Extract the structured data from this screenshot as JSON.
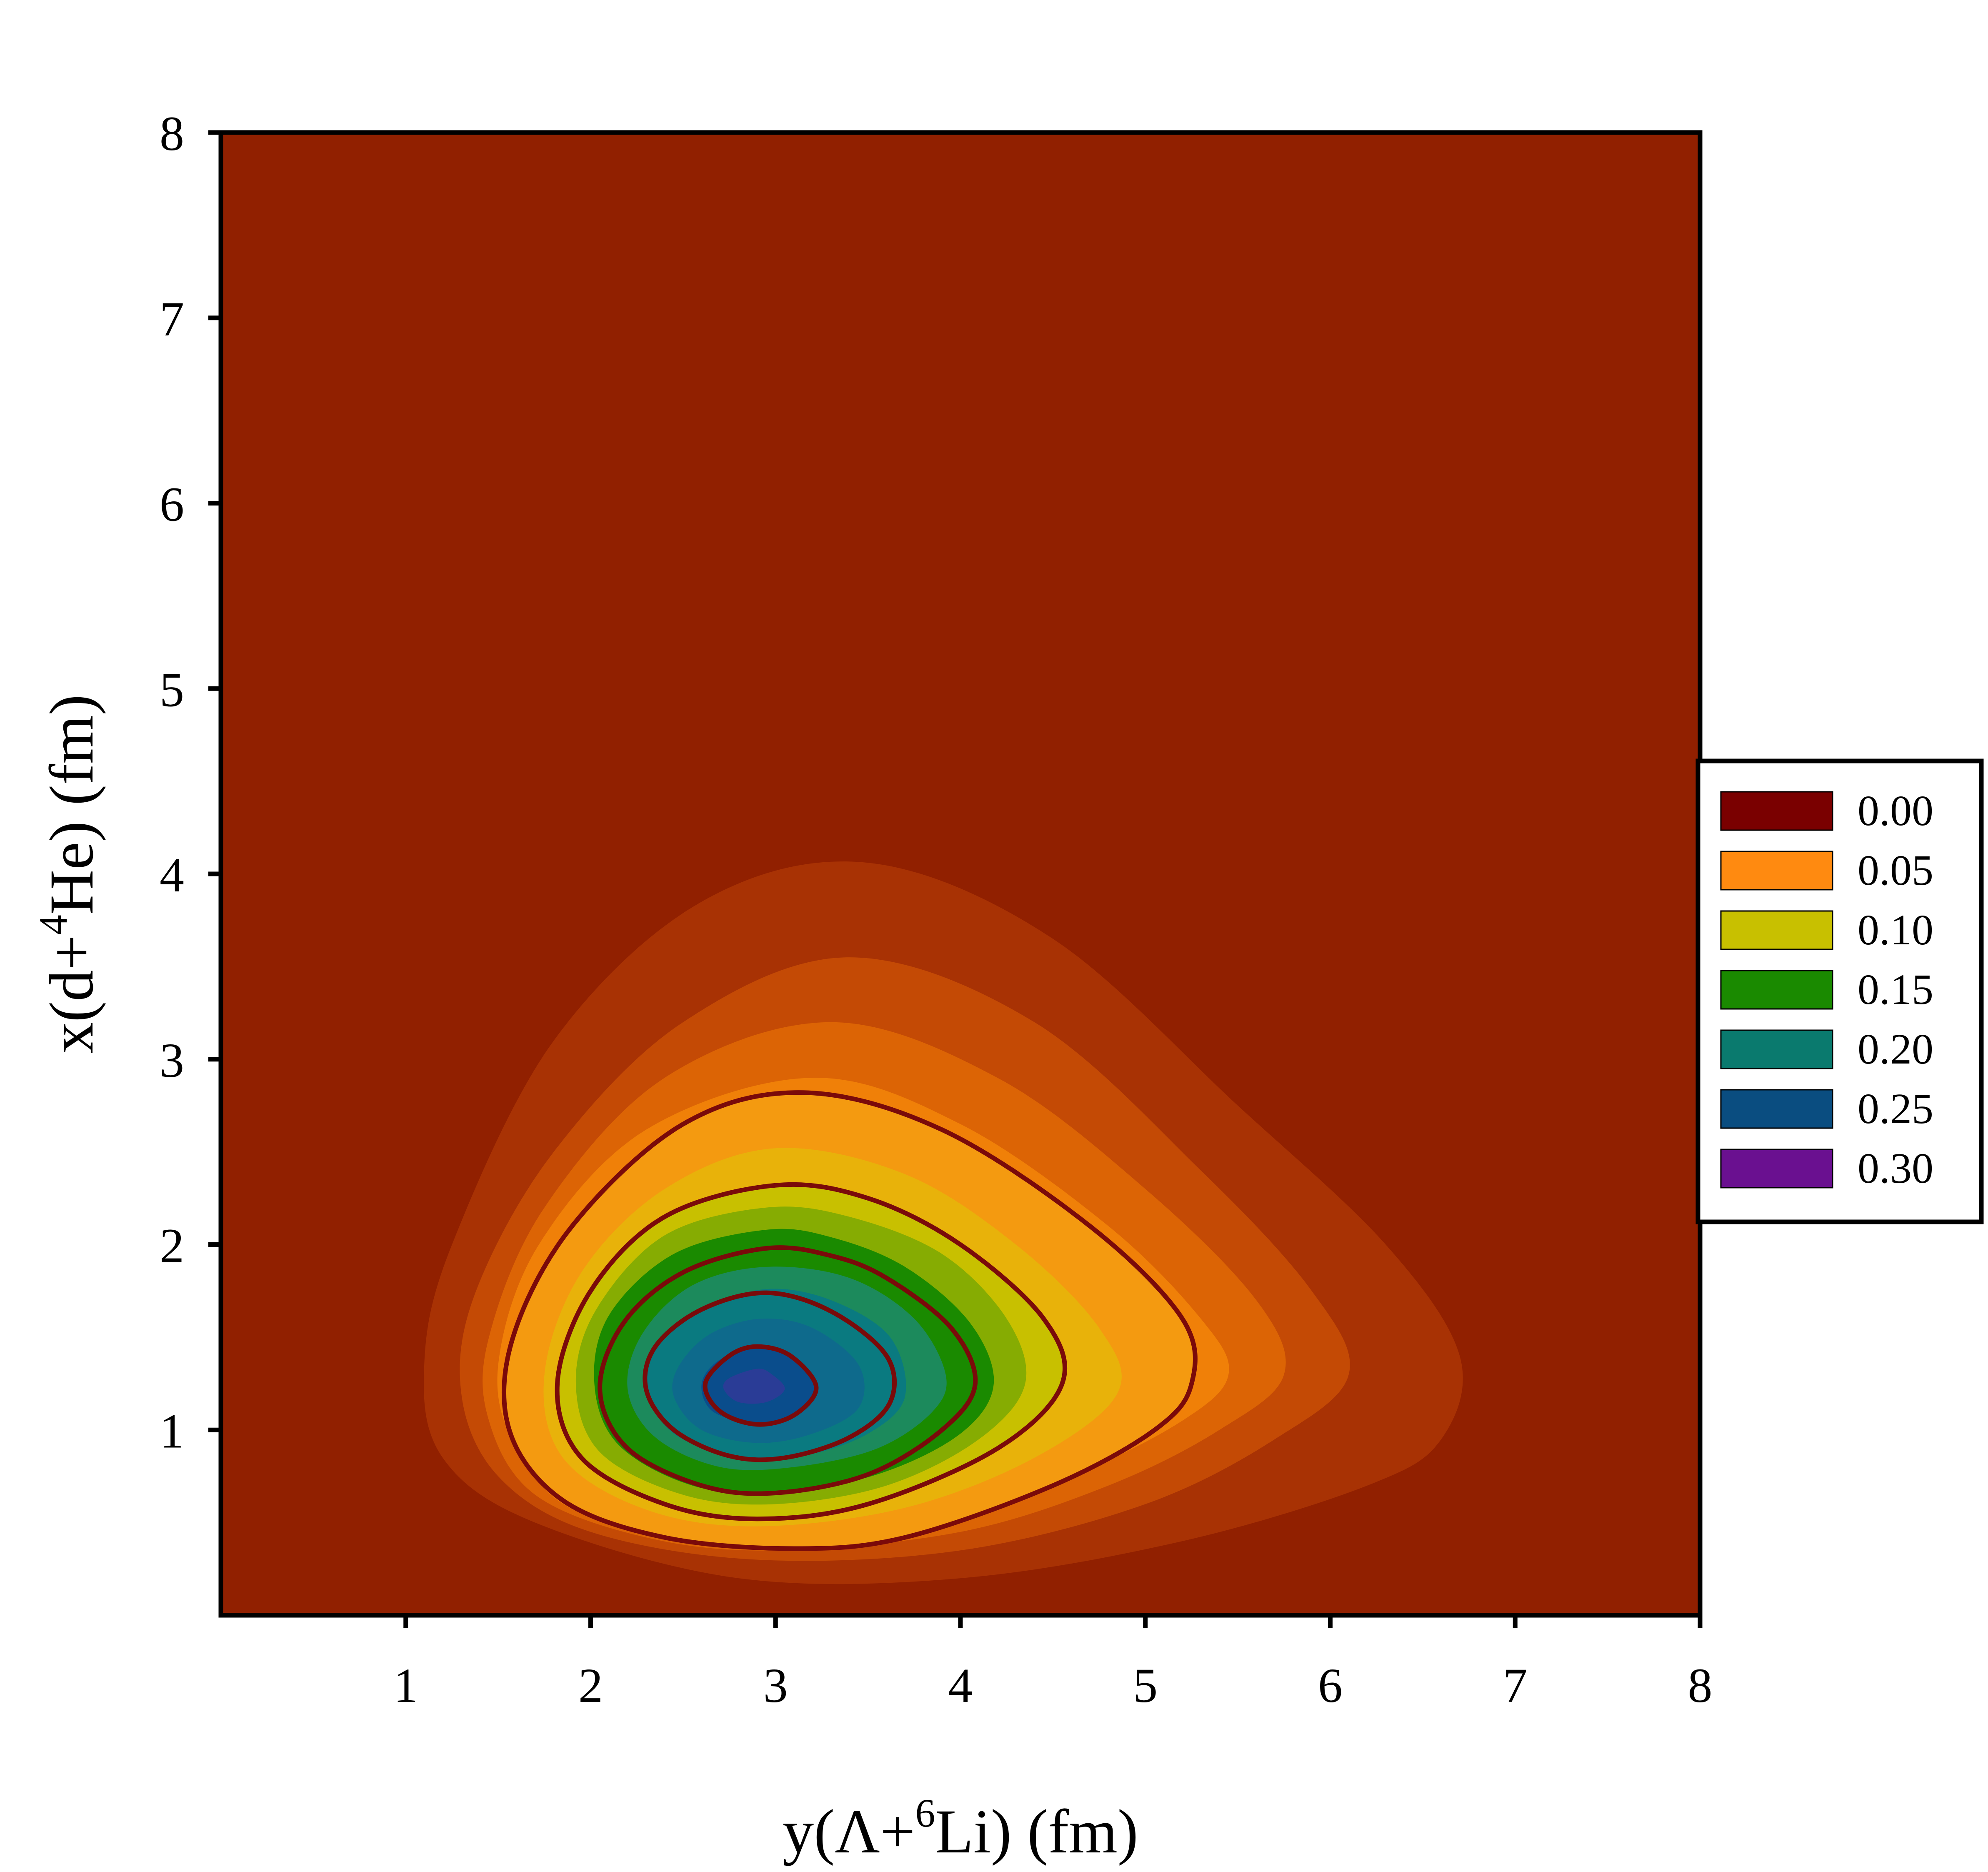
{
  "chart_data": {
    "type": "contour",
    "xlabel": {
      "prefix": "y(Λ+",
      "sup": "6",
      "suffix": "Li) (fm)"
    },
    "ylabel": {
      "prefix": "x(d+",
      "sup": "4",
      "suffix": "He) (fm)"
    },
    "xlim": [
      0,
      8
    ],
    "ylim": [
      0,
      8
    ],
    "x_ticks": [
      "1",
      "2",
      "3",
      "4",
      "5",
      "6",
      "7",
      "8"
    ],
    "y_ticks": [
      "1",
      "2",
      "3",
      "4",
      "5",
      "6",
      "7",
      "8"
    ],
    "grid": false,
    "legend_position": "right",
    "peak": {
      "x": 2.9,
      "y": 1.23
    },
    "filled_levels": [
      {
        "color": "#912000",
        "points": []
      },
      {
        "color": "#A83204",
        "points": [
          [
            3.5,
            4.06
          ],
          [
            2.6,
            3.85
          ],
          [
            1.8,
            3.1
          ],
          [
            1.25,
            2.0
          ],
          [
            1.1,
            1.35
          ],
          [
            1.2,
            0.85
          ],
          [
            1.7,
            0.5
          ],
          [
            2.8,
            0.2
          ],
          [
            4.0,
            0.2
          ],
          [
            5.2,
            0.4
          ],
          [
            6.2,
            0.7
          ],
          [
            6.6,
            0.95
          ],
          [
            6.7,
            1.4
          ],
          [
            6.3,
            2.0
          ],
          [
            5.5,
            2.75
          ],
          [
            4.5,
            3.65
          ]
        ]
      },
      {
        "color": "#C44A05",
        "points": [
          [
            3.4,
            3.55
          ],
          [
            2.5,
            3.2
          ],
          [
            1.8,
            2.5
          ],
          [
            1.38,
            1.75
          ],
          [
            1.3,
            1.2
          ],
          [
            1.5,
            0.75
          ],
          [
            2.0,
            0.45
          ],
          [
            2.9,
            0.3
          ],
          [
            4.0,
            0.35
          ],
          [
            5.0,
            0.6
          ],
          [
            5.7,
            0.95
          ],
          [
            6.1,
            1.3
          ],
          [
            5.9,
            1.75
          ],
          [
            5.3,
            2.4
          ],
          [
            4.4,
            3.2
          ]
        ]
      },
      {
        "color": "#DC6405",
        "points": [
          [
            3.3,
            3.2
          ],
          [
            2.4,
            2.9
          ],
          [
            1.75,
            2.2
          ],
          [
            1.45,
            1.5
          ],
          [
            1.45,
            1.05
          ],
          [
            1.7,
            0.65
          ],
          [
            2.3,
            0.42
          ],
          [
            3.0,
            0.35
          ],
          [
            4.0,
            0.45
          ],
          [
            4.8,
            0.7
          ],
          [
            5.4,
            1.0
          ],
          [
            5.75,
            1.3
          ],
          [
            5.6,
            1.7
          ],
          [
            5.0,
            2.3
          ],
          [
            4.2,
            2.9
          ]
        ]
      },
      {
        "color": "#F08008",
        "points": [
          [
            3.2,
            2.9
          ],
          [
            2.3,
            2.62
          ],
          [
            1.72,
            2.0
          ],
          [
            1.5,
            1.35
          ],
          [
            1.6,
            0.9
          ],
          [
            1.95,
            0.55
          ],
          [
            2.8,
            0.4
          ],
          [
            3.8,
            0.48
          ],
          [
            4.6,
            0.75
          ],
          [
            5.2,
            1.05
          ],
          [
            5.45,
            1.3
          ],
          [
            5.3,
            1.6
          ],
          [
            4.8,
            2.1
          ],
          [
            4.0,
            2.65
          ]
        ]
      },
      {
        "color": "#F49A10",
        "points": [
          [
            3.15,
            2.82
          ],
          [
            2.5,
            2.65
          ],
          [
            1.9,
            2.1
          ],
          [
            1.58,
            1.5
          ],
          [
            1.56,
            1.0
          ],
          [
            1.85,
            0.62
          ],
          [
            2.4,
            0.42
          ],
          [
            3.1,
            0.36
          ],
          [
            3.7,
            0.42
          ],
          [
            4.5,
            0.7
          ],
          [
            5.05,
            1.0
          ],
          [
            5.25,
            1.25
          ],
          [
            5.2,
            1.6
          ],
          [
            4.7,
            2.1
          ],
          [
            3.9,
            2.62
          ]
        ]
      },
      {
        "color": "#E8B20A",
        "points": [
          [
            3.0,
            2.52
          ],
          [
            2.4,
            2.3
          ],
          [
            1.95,
            1.85
          ],
          [
            1.75,
            1.3
          ],
          [
            1.85,
            0.85
          ],
          [
            2.3,
            0.57
          ],
          [
            2.9,
            0.48
          ],
          [
            3.7,
            0.58
          ],
          [
            4.4,
            0.85
          ],
          [
            4.85,
            1.2
          ],
          [
            4.75,
            1.55
          ],
          [
            4.3,
            2.0
          ],
          [
            3.7,
            2.38
          ]
        ]
      },
      {
        "color": "#C8C000",
        "points": [
          [
            3.0,
            2.32
          ],
          [
            2.4,
            2.15
          ],
          [
            2.0,
            1.75
          ],
          [
            1.82,
            1.25
          ],
          [
            1.95,
            0.85
          ],
          [
            2.4,
            0.6
          ],
          [
            2.9,
            0.52
          ],
          [
            3.5,
            0.6
          ],
          [
            4.2,
            0.9
          ],
          [
            4.55,
            1.25
          ],
          [
            4.45,
            1.6
          ],
          [
            4.0,
            2.0
          ],
          [
            3.5,
            2.25
          ]
        ]
      },
      {
        "color": "#86AC02",
        "points": [
          [
            2.95,
            2.2
          ],
          [
            2.4,
            2.05
          ],
          [
            2.03,
            1.65
          ],
          [
            1.92,
            1.25
          ],
          [
            2.05,
            0.88
          ],
          [
            2.5,
            0.65
          ],
          [
            3.0,
            0.6
          ],
          [
            3.6,
            0.7
          ],
          [
            4.1,
            0.95
          ],
          [
            4.35,
            1.25
          ],
          [
            4.25,
            1.6
          ],
          [
            3.9,
            1.95
          ],
          [
            3.4,
            2.15
          ]
        ]
      },
      {
        "color": "#1A8A00",
        "points": [
          [
            2.95,
            2.08
          ],
          [
            2.45,
            1.95
          ],
          [
            2.1,
            1.62
          ],
          [
            2.02,
            1.25
          ],
          [
            2.15,
            0.92
          ],
          [
            2.55,
            0.7
          ],
          [
            3.0,
            0.66
          ],
          [
            3.55,
            0.76
          ],
          [
            4.0,
            0.98
          ],
          [
            4.18,
            1.25
          ],
          [
            4.05,
            1.58
          ],
          [
            3.7,
            1.88
          ],
          [
            3.3,
            2.04
          ]
        ]
      },
      {
        "color": "#1C8A5C",
        "points": [
          [
            2.95,
            1.88
          ],
          [
            2.55,
            1.78
          ],
          [
            2.28,
            1.52
          ],
          [
            2.2,
            1.22
          ],
          [
            2.35,
            0.96
          ],
          [
            2.7,
            0.8
          ],
          [
            3.1,
            0.8
          ],
          [
            3.55,
            0.9
          ],
          [
            3.85,
            1.1
          ],
          [
            3.92,
            1.3
          ],
          [
            3.75,
            1.6
          ],
          [
            3.4,
            1.82
          ]
        ]
      },
      {
        "color": "#0A7A80",
        "points": [
          [
            2.95,
            1.76
          ],
          [
            2.6,
            1.65
          ],
          [
            2.35,
            1.45
          ],
          [
            2.3,
            1.22
          ],
          [
            2.45,
            0.98
          ],
          [
            2.8,
            0.85
          ],
          [
            3.15,
            0.86
          ],
          [
            3.5,
            0.98
          ],
          [
            3.7,
            1.18
          ],
          [
            3.62,
            1.5
          ],
          [
            3.3,
            1.7
          ]
        ]
      },
      {
        "color": "#0E6A8C",
        "points": [
          [
            2.92,
            1.6
          ],
          [
            2.65,
            1.52
          ],
          [
            2.48,
            1.35
          ],
          [
            2.45,
            1.18
          ],
          [
            2.6,
            1.0
          ],
          [
            2.9,
            0.93
          ],
          [
            3.2,
            0.98
          ],
          [
            3.45,
            1.12
          ],
          [
            3.45,
            1.35
          ],
          [
            3.2,
            1.55
          ]
        ]
      },
      {
        "color": "#0A4D8C",
        "points": [
          [
            2.9,
            1.44
          ],
          [
            2.7,
            1.38
          ],
          [
            2.6,
            1.25
          ],
          [
            2.66,
            1.1
          ],
          [
            2.88,
            1.04
          ],
          [
            3.1,
            1.08
          ],
          [
            3.22,
            1.22
          ],
          [
            3.12,
            1.38
          ]
        ]
      },
      {
        "color": "#2A3C96",
        "points": [
          [
            2.9,
            1.33
          ],
          [
            2.75,
            1.28
          ],
          [
            2.72,
            1.22
          ],
          [
            2.8,
            1.15
          ],
          [
            2.95,
            1.15
          ],
          [
            3.05,
            1.22
          ],
          [
            2.98,
            1.3
          ]
        ]
      }
    ],
    "contour_lines": [
      {
        "level": 0.05,
        "points": [
          [
            3.15,
            2.82
          ],
          [
            2.5,
            2.65
          ],
          [
            1.9,
            2.1
          ],
          [
            1.58,
            1.5
          ],
          [
            1.56,
            1.0
          ],
          [
            1.85,
            0.62
          ],
          [
            2.4,
            0.42
          ],
          [
            3.1,
            0.36
          ],
          [
            3.7,
            0.42
          ],
          [
            4.5,
            0.7
          ],
          [
            5.05,
            1.0
          ],
          [
            5.25,
            1.25
          ],
          [
            5.2,
            1.6
          ],
          [
            4.7,
            2.1
          ],
          [
            3.9,
            2.62
          ]
        ]
      },
      {
        "level": 0.1,
        "points": [
          [
            3.0,
            2.32
          ],
          [
            2.4,
            2.15
          ],
          [
            2.0,
            1.75
          ],
          [
            1.82,
            1.25
          ],
          [
            1.95,
            0.85
          ],
          [
            2.4,
            0.6
          ],
          [
            2.9,
            0.52
          ],
          [
            3.5,
            0.6
          ],
          [
            4.2,
            0.9
          ],
          [
            4.55,
            1.25
          ],
          [
            4.45,
            1.6
          ],
          [
            4.0,
            2.0
          ],
          [
            3.5,
            2.25
          ]
        ]
      },
      {
        "level": 0.15,
        "points": [
          [
            2.95,
            1.98
          ],
          [
            2.5,
            1.85
          ],
          [
            2.18,
            1.58
          ],
          [
            2.05,
            1.22
          ],
          [
            2.2,
            0.9
          ],
          [
            2.6,
            0.7
          ],
          [
            3.0,
            0.66
          ],
          [
            3.5,
            0.76
          ],
          [
            3.9,
            1.0
          ],
          [
            4.08,
            1.25
          ],
          [
            3.95,
            1.55
          ],
          [
            3.6,
            1.82
          ],
          [
            3.3,
            1.94
          ]
        ]
      },
      {
        "level": 0.2,
        "points": [
          [
            2.95,
            1.74
          ],
          [
            2.6,
            1.65
          ],
          [
            2.35,
            1.45
          ],
          [
            2.3,
            1.22
          ],
          [
            2.45,
            1.0
          ],
          [
            2.75,
            0.86
          ],
          [
            3.05,
            0.85
          ],
          [
            3.4,
            0.96
          ],
          [
            3.62,
            1.15
          ],
          [
            3.6,
            1.4
          ],
          [
            3.3,
            1.64
          ]
        ]
      },
      {
        "level": 0.25,
        "points": [
          [
            2.9,
            1.45
          ],
          [
            2.75,
            1.4
          ],
          [
            2.62,
            1.25
          ],
          [
            2.7,
            1.1
          ],
          [
            2.9,
            1.03
          ],
          [
            3.1,
            1.08
          ],
          [
            3.22,
            1.23
          ],
          [
            3.08,
            1.4
          ]
        ]
      }
    ],
    "line_color": "#7A0A0A",
    "legend": [
      {
        "label": "0.00",
        "color": "#7A0000"
      },
      {
        "label": "0.05",
        "color": "#FF8A10"
      },
      {
        "label": "0.10",
        "color": "#C8C000"
      },
      {
        "label": "0.15",
        "color": "#1A8A00"
      },
      {
        "label": "0.20",
        "color": "#0A7A6E"
      },
      {
        "label": "0.25",
        "color": "#0A4D80"
      },
      {
        "label": "0.30",
        "color": "#6A1090"
      }
    ]
  }
}
